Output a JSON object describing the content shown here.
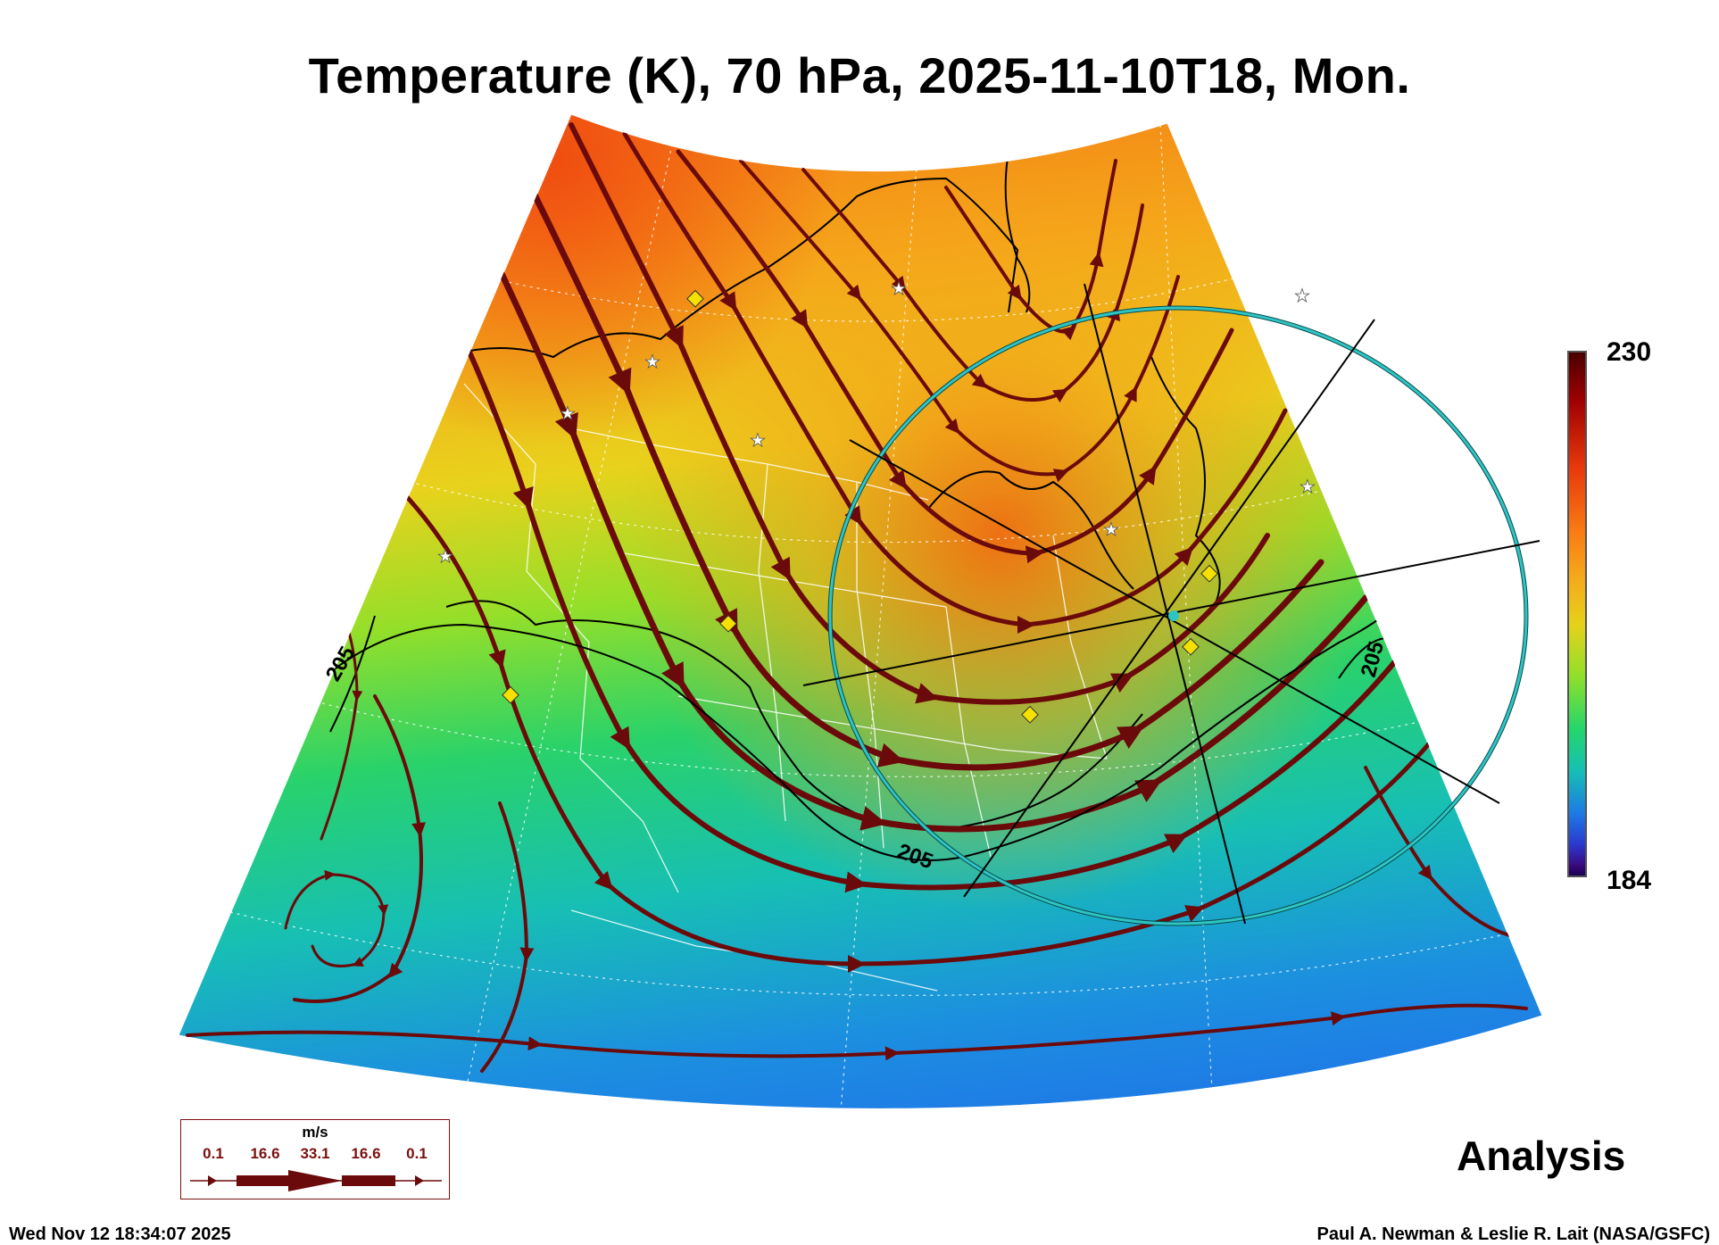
{
  "title": "Temperature (K), 70 hPa, 2025-11-10T18, Mon.",
  "colorbar": {
    "max_label": "230",
    "min_label": "184",
    "min": 184,
    "max": 230,
    "colors": [
      "#4a0000",
      "#9e0000",
      "#e8380c",
      "#f97a14",
      "#f5a91a",
      "#e6d11b",
      "#8fe02a",
      "#24d66b",
      "#16c0b4",
      "#1e7be4",
      "#2a3ad0",
      "#1a0050"
    ]
  },
  "contour_labels": [
    "205",
    "205",
    "205"
  ],
  "wind_legend": {
    "unit": "m/s",
    "values": [
      "0.1",
      "16.6",
      "33.1",
      "16.6",
      "0.1"
    ]
  },
  "analysis_label": "Analysis",
  "timestamp": "Wed Nov 12 18:34:07 2025",
  "credit": "Paul A. Newman & Leslie R. Lait (NASA/GSFC)",
  "colors": {
    "streamline": "#6b0a0a",
    "vortex_circle": "#2ec4c4",
    "coastline": "#000000",
    "state_borders": "#ffffff",
    "station_marker": "#f5e000"
  }
}
